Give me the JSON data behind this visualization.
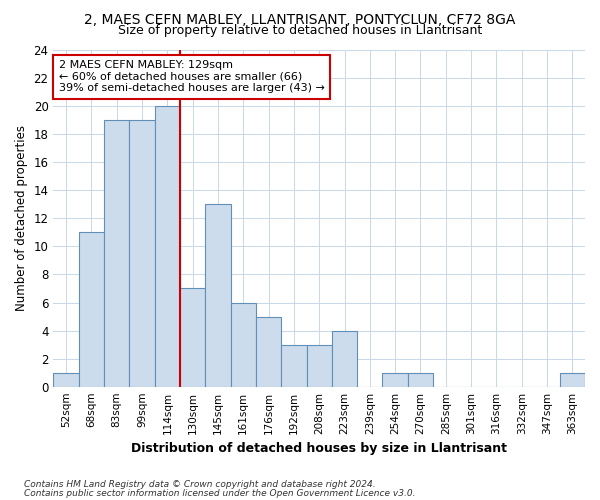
{
  "title1": "2, MAES CEFN MABLEY, LLANTRISANT, PONTYCLUN, CF72 8GA",
  "title2": "Size of property relative to detached houses in Llantrisant",
  "xlabel": "Distribution of detached houses by size in Llantrisant",
  "ylabel": "Number of detached properties",
  "bins": [
    "52sqm",
    "68sqm",
    "83sqm",
    "99sqm",
    "114sqm",
    "130sqm",
    "145sqm",
    "161sqm",
    "176sqm",
    "192sqm",
    "208sqm",
    "223sqm",
    "239sqm",
    "254sqm",
    "270sqm",
    "285sqm",
    "301sqm",
    "316sqm",
    "332sqm",
    "347sqm",
    "363sqm"
  ],
  "values": [
    1,
    11,
    19,
    19,
    20,
    7,
    13,
    6,
    5,
    3,
    3,
    4,
    0,
    1,
    1,
    0,
    0,
    0,
    0,
    0,
    1
  ],
  "bar_color": "#ccdcec",
  "bar_edge_color": "#6090b8",
  "annotation_line1": "2 MAES CEFN MABLEY: 129sqm",
  "annotation_line2": "← 60% of detached houses are smaller (66)",
  "annotation_line3": "39% of semi-detached houses are larger (43) →",
  "ylim": [
    0,
    24
  ],
  "yticks": [
    0,
    2,
    4,
    6,
    8,
    10,
    12,
    14,
    16,
    18,
    20,
    22,
    24
  ],
  "footer1": "Contains HM Land Registry data © Crown copyright and database right 2024.",
  "footer2": "Contains public sector information licensed under the Open Government Licence v3.0.",
  "bg_color": "#ffffff",
  "plot_bg_color": "#ffffff",
  "grid_color": "#c8d8e8",
  "subject_line_color": "#cc0000",
  "annotation_box_color": "#ffffff",
  "annotation_box_edge": "#cc0000",
  "subject_line_index": 5
}
